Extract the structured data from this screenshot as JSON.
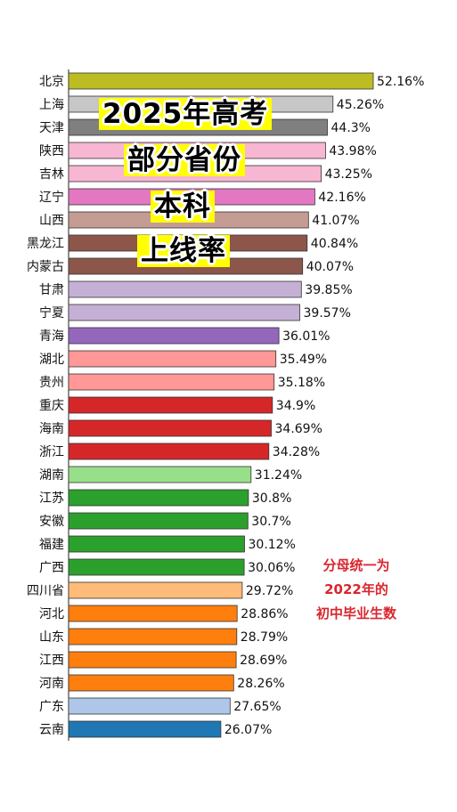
{
  "chart_data": {
    "type": "bar",
    "orientation": "horizontal",
    "categories": [
      "北京",
      "上海",
      "天津",
      "陕西",
      "吉林",
      "辽宁",
      "山西",
      "黑龙江",
      "内蒙古",
      "甘肃",
      "宁夏",
      "青海",
      "湖北",
      "贵州",
      "重庆",
      "海南",
      "浙江",
      "湖南",
      "江苏",
      "安徽",
      "福建",
      "广西",
      "四川省",
      "河北",
      "山东",
      "江西",
      "河南",
      "广东",
      "云南"
    ],
    "values": [
      52.16,
      45.26,
      44.3,
      43.98,
      43.25,
      42.16,
      41.07,
      40.84,
      40.07,
      39.85,
      39.57,
      36.01,
      35.49,
      35.18,
      34.9,
      34.69,
      34.28,
      31.24,
      30.8,
      30.7,
      30.12,
      30.06,
      29.72,
      28.86,
      28.79,
      28.69,
      28.26,
      27.65,
      26.07
    ],
    "value_labels": [
      "52.16%",
      "45.26%",
      "44.3%",
      "43.98%",
      "43.25%",
      "42.16%",
      "41.07%",
      "40.84%",
      "40.07%",
      "39.85%",
      "39.57%",
      "36.01%",
      "35.49%",
      "35.18%",
      "34.9%",
      "34.69%",
      "34.28%",
      "31.24%",
      "30.8%",
      "30.7%",
      "30.12%",
      "30.06%",
      "29.72%",
      "28.86%",
      "28.79%",
      "28.69%",
      "28.26%",
      "27.65%",
      "26.07%"
    ],
    "colors": [
      "#bcbd22",
      "#c7c7c7",
      "#7f7f7f",
      "#f7b6d2",
      "#f7b6d2",
      "#e377c2",
      "#c49c94",
      "#8c564b",
      "#8c564b",
      "#c5b0d5",
      "#c5b0d5",
      "#9467bd",
      "#ff9896",
      "#ff9896",
      "#d62728",
      "#d62728",
      "#d62728",
      "#98df8a",
      "#2ca02c",
      "#2ca02c",
      "#2ca02c",
      "#2ca02c",
      "#ffbb78",
      "#ff7f0e",
      "#ff7f0e",
      "#ff7f0e",
      "#ff7f0e",
      "#aec7e8",
      "#1f77b4"
    ],
    "title_lines": [
      "2025年高考",
      "部分省份",
      "本科",
      "上线率"
    ],
    "annotation_lines": [
      "分母统一为",
      "2022年的",
      "初中毕业生数"
    ],
    "xlim": [
      0,
      52.16
    ],
    "grid": false,
    "legend": "none"
  }
}
